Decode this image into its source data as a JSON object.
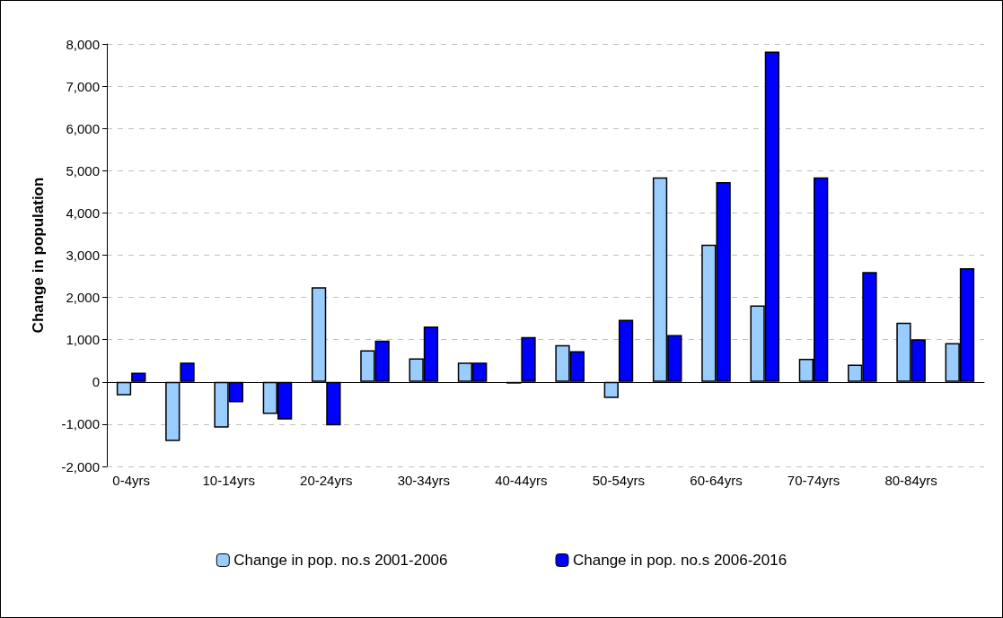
{
  "chart_data": {
    "type": "bar",
    "ylabel": "Change in population",
    "categories": [
      "0-4yrs",
      null,
      "10-14yrs",
      null,
      "20-24yrs",
      null,
      "30-34yrs",
      null,
      "40-44yrs",
      null,
      "50-54yrs",
      null,
      "60-64yrs",
      null,
      "70-74yrs",
      null,
      "80-84yrs",
      null
    ],
    "series": [
      {
        "name": "Change in pop. no.s 2001-2006",
        "color": "#99ccff",
        "values": [
          -320,
          -1400,
          -1080,
          -760,
          2240,
          750,
          560,
          460,
          -40,
          870,
          -380,
          4840,
          3250,
          1810,
          550,
          410,
          1400,
          920
        ]
      },
      {
        "name": "Change in pop. no.s 2006-2016",
        "color": "#0000ff",
        "values": [
          220,
          460,
          -480,
          -890,
          -1030,
          980,
          1310,
          460,
          1060,
          730,
          1470,
          1110,
          4730,
          7820,
          4840,
          2600,
          1010,
          2690
        ]
      }
    ],
    "ylim": [
      -2000,
      8000
    ],
    "yticks": [
      {
        "value": -2000,
        "label": "-2,000"
      },
      {
        "value": -1000,
        "label": "-1,000"
      },
      0,
      {
        "value": 1000,
        "label": "1,000"
      },
      {
        "value": 2000,
        "label": "2,000"
      },
      {
        "value": 3000,
        "label": "3,000"
      },
      {
        "value": 4000,
        "label": "4,000"
      },
      {
        "value": 5000,
        "label": "5,000"
      },
      {
        "value": 6000,
        "label": "6,000"
      },
      {
        "value": 7000,
        "label": "7,000"
      },
      {
        "value": 8000,
        "label": "8,000"
      }
    ],
    "grid": "y",
    "legend": "bottom"
  }
}
